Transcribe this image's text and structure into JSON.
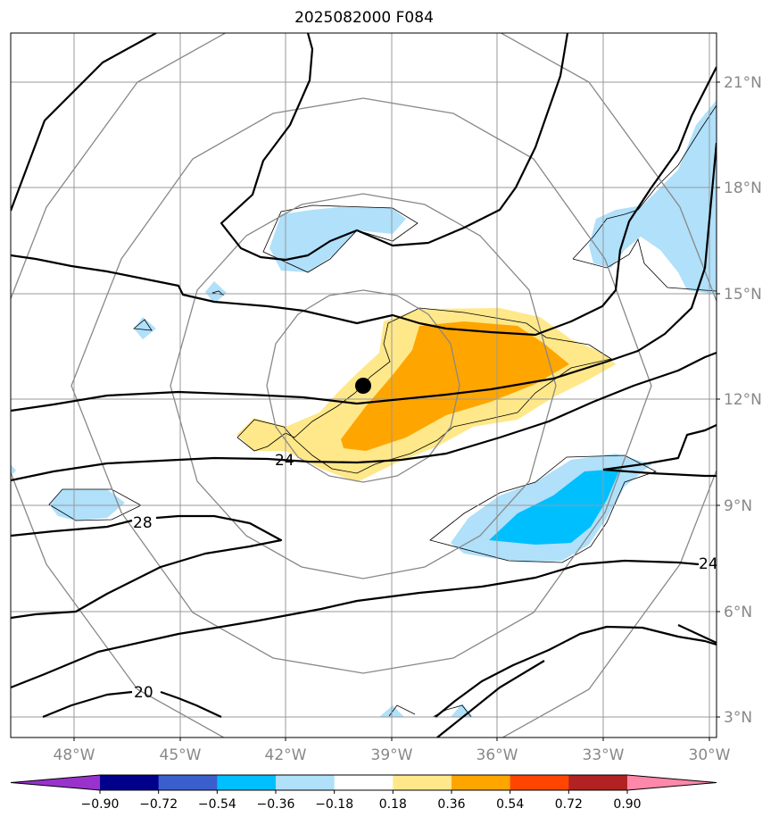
{
  "title": "2025082000 F084",
  "lon_ticks": [
    "48°W",
    "45°W",
    "42°W",
    "39°W",
    "36°W",
    "33°W",
    "30°W"
  ],
  "lat_ticks": [
    "21°N",
    "18°N",
    "15°N",
    "12°N",
    "9°N",
    "6°N",
    "3°N"
  ],
  "colorbar": {
    "labels": [
      "−0.90",
      "−0.72",
      "−0.54",
      "−0.36",
      "−0.18",
      "0.18",
      "0.36",
      "0.54",
      "0.72",
      "0.90"
    ],
    "colors": [
      "#9932cc",
      "#00008b",
      "#3a5fcd",
      "#00bfff",
      "#b0e0fa",
      "#ffffff",
      "#ffe88a",
      "#ffa500",
      "#ff4500",
      "#b22222",
      "#ff88aa"
    ]
  },
  "contour_labels": {
    "c24a": "24",
    "c28": "28",
    "c24b": "24",
    "c20": "20"
  },
  "colors": {
    "grid": "#999999",
    "range_ring": "#888888",
    "contour": "#000000",
    "center_marker": "#000000"
  }
}
